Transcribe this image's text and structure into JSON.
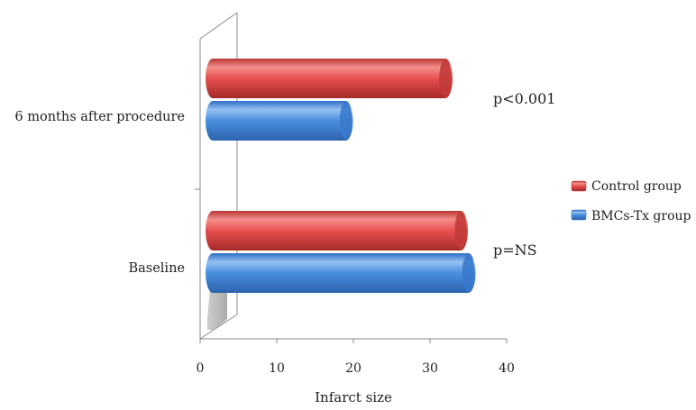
{
  "chart_data": {
    "type": "bar",
    "orientation": "horizontal",
    "style": "3d-cylinder",
    "categories": [
      "Baseline",
      "6 months after procedure"
    ],
    "series": [
      {
        "name": "Control group",
        "values": [
          34,
          32
        ],
        "color": "#e8504f"
      },
      {
        "name": "BMCs-Tx group",
        "values": [
          35,
          19
        ],
        "color": "#4a8fde"
      }
    ],
    "xlabel": "Infarct size",
    "xlim": [
      0,
      40
    ],
    "xticks": [
      0,
      10,
      20,
      30,
      40
    ],
    "annotations": [
      {
        "category": "6 months after procedure",
        "text": "p<0.001"
      },
      {
        "category": "Baseline",
        "text": "p=NS"
      }
    ],
    "legend_position": "right",
    "grid": false
  }
}
